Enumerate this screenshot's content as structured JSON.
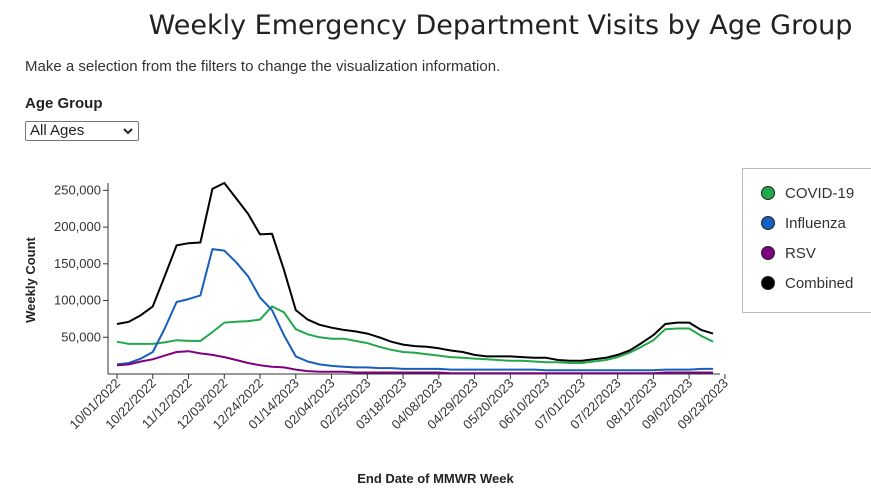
{
  "page": {
    "title": "Weekly Emergency Department Visits by Age Group",
    "subtitle": "Make a selection from the filters to change the visualization information.",
    "filter_label": "Age Group",
    "filter_value": "All Ages"
  },
  "chart_data": {
    "type": "line",
    "xlabel": "End Date of MMWR Week",
    "ylabel": "Weekly Count",
    "ylim": [
      0,
      260000
    ],
    "yticks": [
      50000,
      100000,
      150000,
      200000,
      250000
    ],
    "ytick_labels": [
      "50,000",
      "100,000",
      "150,000",
      "200,000",
      "250,000"
    ],
    "xtick_labels": [
      "10/01/2022",
      "10/22/2022",
      "11/12/2022",
      "12/03/2022",
      "12/24/2022",
      "01/14/2023",
      "02/04/2023",
      "02/25/2023",
      "03/18/2023",
      "04/08/2023",
      "04/29/2023",
      "05/20/2023",
      "06/10/2023",
      "07/01/2023",
      "07/22/2023",
      "08/12/2023",
      "09/02/2023",
      "09/23/2023"
    ],
    "legend_position": "right",
    "series": [
      {
        "name": "COVID-19",
        "color": "#22a84a",
        "values": [
          44000,
          41000,
          41000,
          41000,
          43000,
          46000,
          45000,
          45000,
          57000,
          70000,
          71000,
          72000,
          74000,
          92000,
          84000,
          61000,
          54000,
          50000,
          48000,
          48000,
          45000,
          42000,
          37000,
          33000,
          30000,
          29000,
          27000,
          25000,
          23000,
          22000,
          21000,
          20000,
          19000,
          18000,
          18000,
          17000,
          16000,
          16000,
          15000,
          15000,
          17000,
          19000,
          23000,
          29000,
          37000,
          46000,
          61000,
          62000,
          62000,
          52000,
          44000
        ]
      },
      {
        "name": "Influenza",
        "color": "#1560bd",
        "values": [
          13000,
          15000,
          21000,
          30000,
          62000,
          98000,
          102000,
          107000,
          170000,
          168000,
          152000,
          133000,
          104000,
          87000,
          53000,
          24000,
          17000,
          13000,
          11000,
          10000,
          9000,
          9000,
          8000,
          8000,
          7000,
          7000,
          7000,
          7000,
          6000,
          6000,
          6000,
          6000,
          6000,
          6000,
          6000,
          6000,
          5000,
          5000,
          5000,
          5000,
          5000,
          5000,
          5000,
          5000,
          5000,
          5000,
          6000,
          6000,
          6000,
          7000,
          7000
        ]
      },
      {
        "name": "RSV",
        "color": "#800080",
        "values": [
          12000,
          13000,
          17000,
          20000,
          25000,
          30000,
          31000,
          28000,
          26000,
          23000,
          19000,
          15000,
          12000,
          10000,
          9000,
          6000,
          4000,
          3000,
          3000,
          3000,
          2000,
          2000,
          2000,
          2000,
          2000,
          2000,
          2000,
          2000,
          1000,
          1000,
          1000,
          1000,
          1000,
          1000,
          1000,
          1000,
          1000,
          1000,
          1000,
          1000,
          1000,
          1000,
          1000,
          1000,
          1000,
          1000,
          2000,
          2000,
          2000,
          2000,
          2000
        ]
      },
      {
        "name": "Combined",
        "color": "#000000",
        "values": [
          68000,
          71000,
          80000,
          92000,
          133000,
          175000,
          178000,
          179000,
          252000,
          260000,
          239000,
          218000,
          190000,
          191000,
          142000,
          87000,
          74000,
          67000,
          63000,
          60000,
          58000,
          55000,
          50000,
          44000,
          40000,
          38000,
          37000,
          35000,
          32000,
          30000,
          26000,
          24000,
          24000,
          24000,
          23000,
          22000,
          22000,
          19000,
          18000,
          18000,
          20000,
          22000,
          26000,
          32000,
          42000,
          53000,
          68000,
          70000,
          70000,
          60000,
          55000
        ]
      }
    ]
  }
}
